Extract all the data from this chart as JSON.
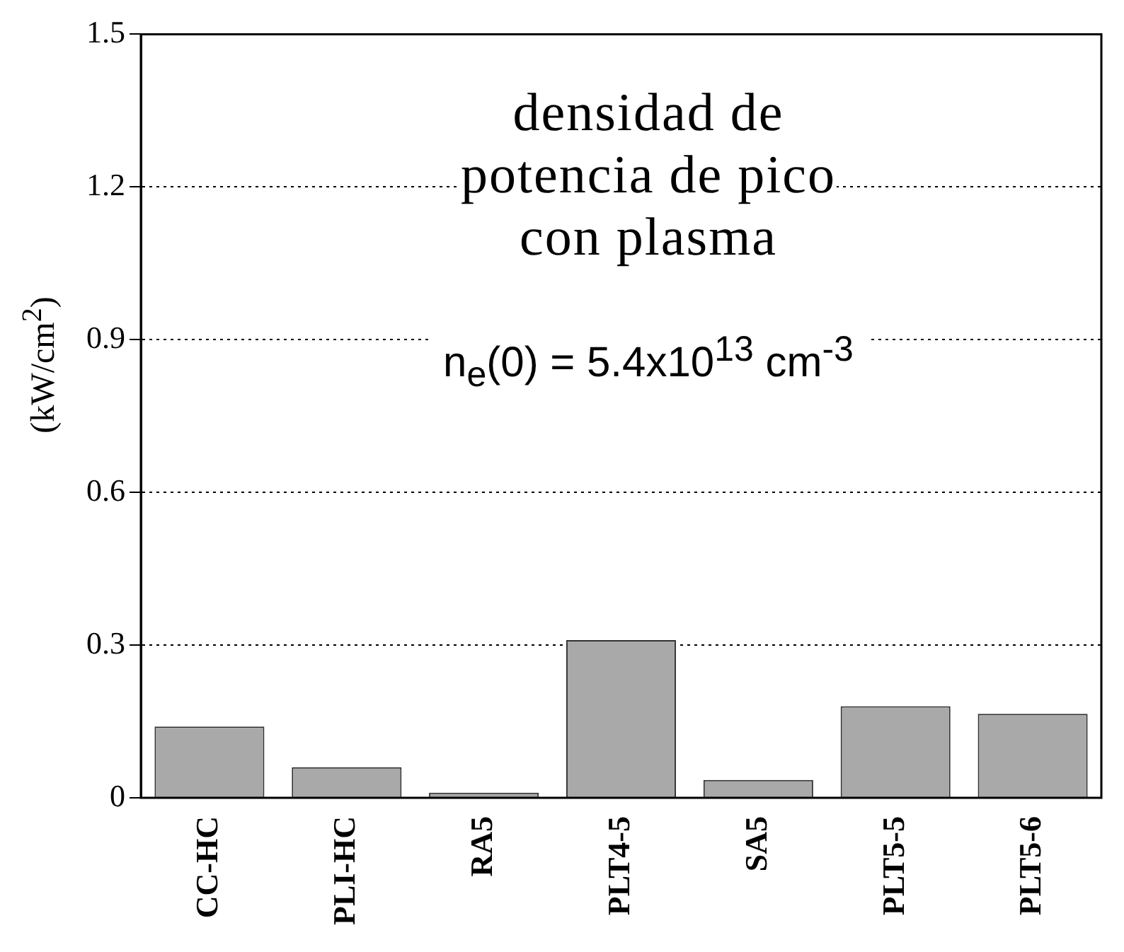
{
  "chart_data": {
    "type": "bar",
    "title": "densidad de potencia de pico con plasma",
    "annotations": [
      "n$_{e}$(0) = 5.4x10$^{13}$ cm$^{-3}$"
    ],
    "ylabel": "(kW/cm$^{2}$)",
    "categories": [
      "CC-HC",
      "PLI-HC",
      "RA5",
      "PLT4-5",
      "SA5",
      "PLT5-5",
      "PLT5-6"
    ],
    "values": [
      0.14,
      0.06,
      0.01,
      0.31,
      0.035,
      0.18,
      0.165
    ],
    "color": "#a9a9a9",
    "ylim": [
      0,
      1.5
    ],
    "yticks": [
      0,
      0.3,
      0.6,
      0.9,
      1.2,
      1.5
    ],
    "grid": "y",
    "legend": false
  }
}
